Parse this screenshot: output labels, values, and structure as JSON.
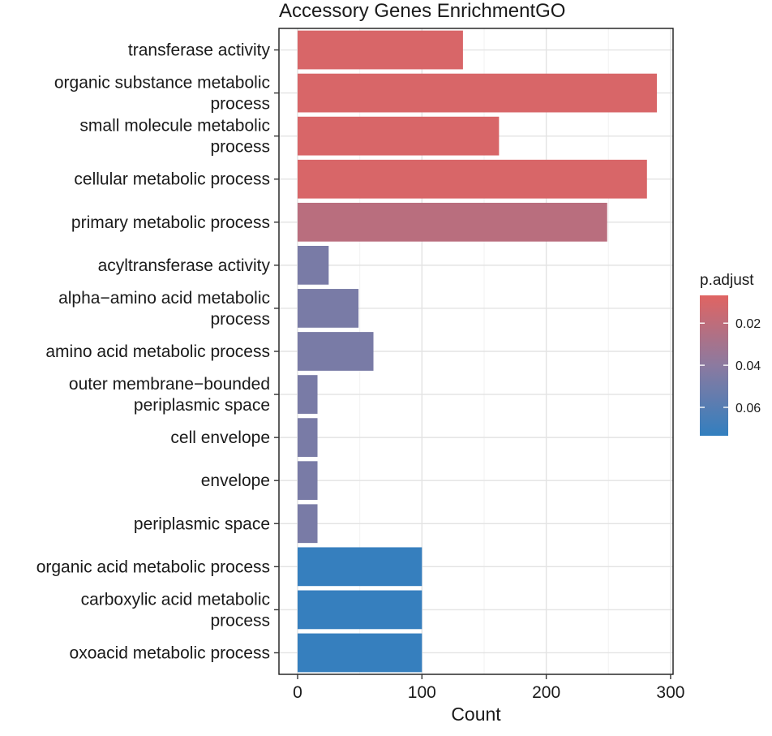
{
  "chart_data": {
    "type": "bar",
    "orientation": "horizontal",
    "title": "Accessory Genes EnrichmentGO",
    "xlabel": "Count",
    "ylabel": "",
    "xlim": [
      -15,
      302
    ],
    "x_ticks": [
      0,
      100,
      200,
      300
    ],
    "grid": true,
    "categories": [
      [
        "transferase activity"
      ],
      [
        "organic substance metabolic",
        "process"
      ],
      [
        "small molecule metabolic",
        "process"
      ],
      [
        "cellular metabolic process"
      ],
      [
        "primary metabolic process"
      ],
      [
        "acyltransferase activity"
      ],
      [
        "alpha−amino acid metabolic",
        "process"
      ],
      [
        "amino acid metabolic process"
      ],
      [
        "outer membrane−bounded",
        "periplasmic space"
      ],
      [
        "cell envelope"
      ],
      [
        "envelope"
      ],
      [
        "periplasmic space"
      ],
      [
        "organic acid metabolic process"
      ],
      [
        "carboxylic acid metabolic",
        "process"
      ],
      [
        "oxoacid metabolic process"
      ]
    ],
    "values": [
      133,
      289,
      162,
      281,
      249,
      25,
      49,
      61,
      16,
      16,
      16,
      16,
      100,
      100,
      100
    ],
    "p_adjust": [
      0.01,
      0.01,
      0.01,
      0.01,
      0.022,
      0.047,
      0.047,
      0.047,
      0.047,
      0.047,
      0.047,
      0.047,
      0.072,
      0.072,
      0.072
    ],
    "legend": {
      "title": "p.adjust",
      "placement": "right",
      "ticks": [
        "0.02",
        "0.04",
        "0.06"
      ],
      "tick_values": [
        0.02,
        0.04,
        0.06
      ],
      "range": [
        0.0068,
        0.0735
      ],
      "color_low": "#e06462",
      "color_mid": "#8b7aa0",
      "color_high": "#327fbf"
    }
  }
}
